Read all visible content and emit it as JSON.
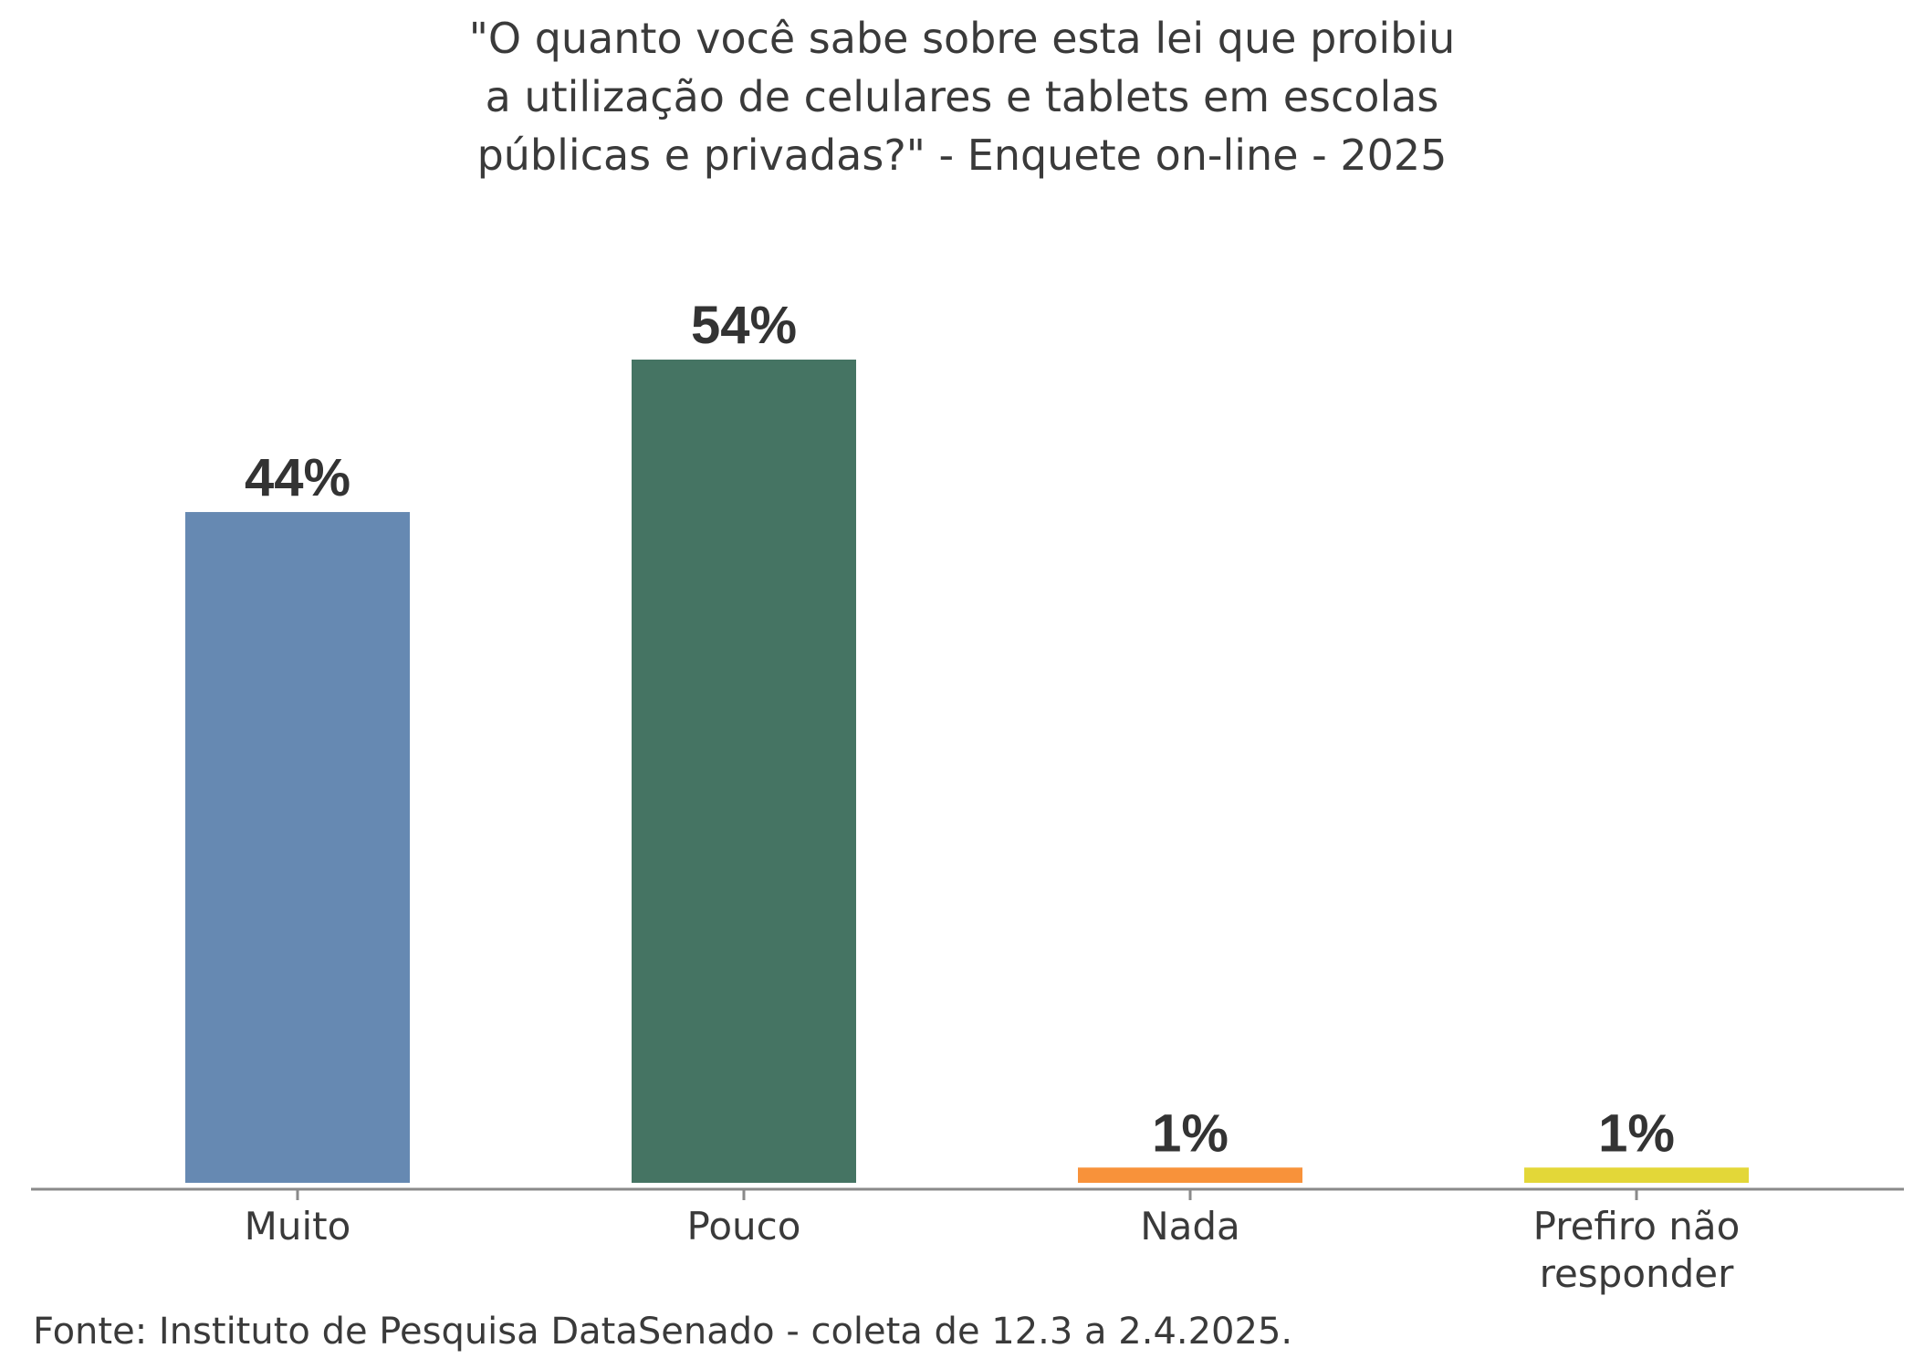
{
  "chart_data": {
    "type": "bar",
    "title_lines": [
      "\"O quanto você sabe sobre esta lei que proibiu",
      "a utilização de celulares e tablets em escolas",
      "públicas e privadas?\" - Enquete on-line - 2025"
    ],
    "categories": [
      {
        "lines": [
          "Muito"
        ]
      },
      {
        "lines": [
          "Pouco"
        ]
      },
      {
        "lines": [
          "Nada"
        ]
      },
      {
        "lines": [
          "Prefiro não",
          "responder"
        ]
      }
    ],
    "values": [
      44,
      54,
      1,
      1
    ],
    "labels": [
      "44%",
      "54%",
      "1%",
      "1%"
    ],
    "colors": [
      "#6689b2",
      "#457463",
      "#f8923a",
      "#e3d738"
    ],
    "ylim": [
      0,
      54
    ],
    "grid": false,
    "xlabel": "",
    "ylabel": "",
    "source": "Fonte: Instituto de Pesquisa DataSenado - coleta de 12.3 a 2.4.2025."
  }
}
